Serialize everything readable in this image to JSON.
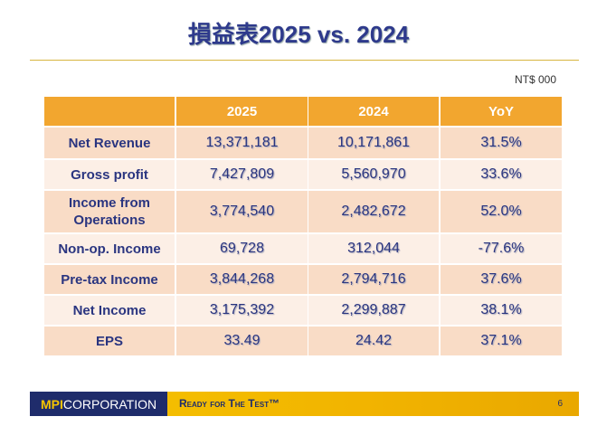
{
  "header": {
    "title": "損益表2025 vs. 2024",
    "unit": "NT$ 000"
  },
  "table": {
    "columns": [
      "2025",
      "2024",
      "YoY"
    ],
    "rows": [
      [
        "Net Revenue",
        "13,371,181",
        "10,171,861",
        "31.5%"
      ],
      [
        "Gross profit",
        "7,427,809",
        "5,560,970",
        "33.6%"
      ],
      [
        "Income from Operations",
        "3,774,540",
        "2,482,672",
        "52.0%"
      ],
      [
        "Non-op. Income",
        "69,728",
        "312,044",
        "-77.6%"
      ],
      [
        "Pre-tax Income",
        "3,844,268",
        "2,794,716",
        "37.6%"
      ],
      [
        "Net Income",
        "3,175,392",
        "2,299,887",
        "38.1%"
      ],
      [
        "EPS",
        "33.49",
        "24.42",
        "37.1%"
      ]
    ]
  },
  "footer": {
    "logo_mark": "MPI",
    "logo_name": "CORPORATION",
    "tagline": "Ready for The Test™",
    "page": "6"
  }
}
